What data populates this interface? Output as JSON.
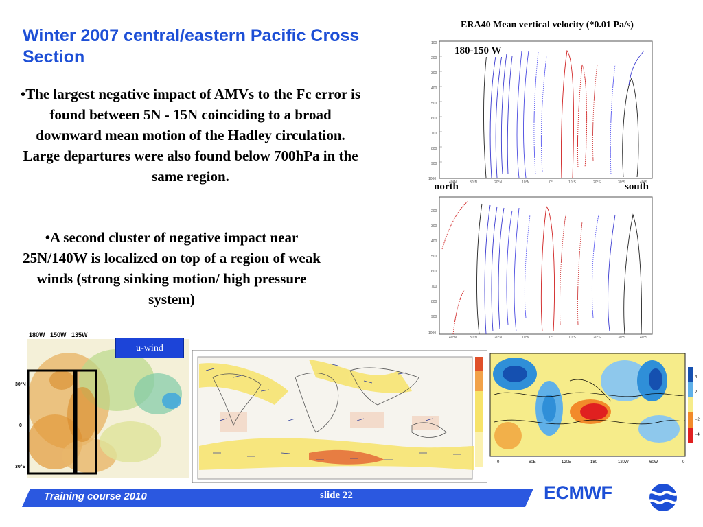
{
  "slide": {
    "title": "Winter 2007 central/eastern Pacific Cross Section",
    "bullets": [
      "•The largest negative impact of AMVs to the Fc error is found between 5N - 15N coinciding to a broad downward mean motion of the Hadley circulation. Large departures were also found below 700hPa in the same region.",
      "•A second cluster of negative impact near 25N/140W is localized on top of a region of weak winds (strong sinking motion/ high pressure system)"
    ],
    "era_caption": "ERA40 Mean vertical velocity (*0.01 Pa/s)",
    "range_label": "180-150 W",
    "north_label": "north",
    "south_label": "south",
    "map_lon_labels": "180W 150W 135W",
    "uwind_label": "u-wind",
    "footer_course": "Training course  2010",
    "footer_slide": "slide 22",
    "logo_text": "ECMWF"
  },
  "colors": {
    "title_blue": "#1d4fd6",
    "footer_blue": "#2b58e0",
    "uwind_blue": "#1c44d8"
  }
}
